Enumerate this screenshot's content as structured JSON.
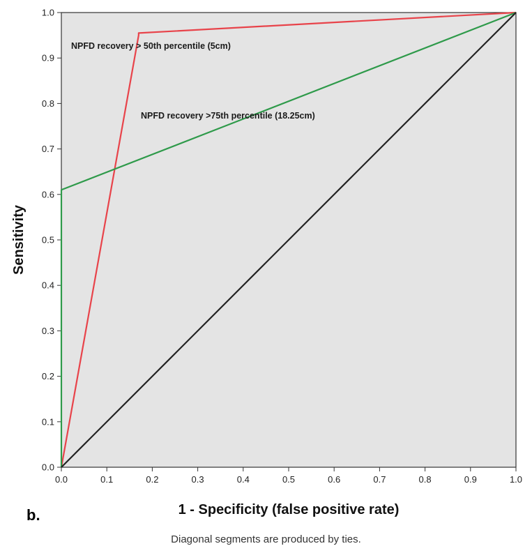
{
  "chart_data": {
    "type": "line",
    "xlabel": "1 - Specificity (false positive rate)",
    "ylabel": "Sensitivity",
    "xlim": [
      0.0,
      1.0
    ],
    "ylim": [
      0.0,
      1.0
    ],
    "x_ticks": [
      "0.0",
      "0.1",
      "0.2",
      "0.3",
      "0.4",
      "0.5",
      "0.6",
      "0.7",
      "0.8",
      "0.9",
      "1.0"
    ],
    "y_ticks": [
      "0.0",
      "0.1",
      "0.2",
      "0.3",
      "0.4",
      "0.5",
      "0.6",
      "0.7",
      "0.8",
      "0.9",
      "1.0"
    ],
    "grid": false,
    "background_color": "#e4e4e4",
    "series": [
      {
        "name": "NPFD recovery > 50th percentile (5cm)",
        "color": "#e8434a",
        "x": [
          0.0,
          0.17,
          0.17,
          1.0
        ],
        "y": [
          0.0,
          0.95,
          0.955,
          1.0
        ]
      },
      {
        "name": "NPFD recovery >75th percentile (18.25cm)",
        "color": "#2e9a4a",
        "x": [
          0.0,
          0.0,
          1.0
        ],
        "y": [
          0.0,
          0.61,
          1.0
        ]
      },
      {
        "color": "#222222",
        "x": [
          0.0,
          1.0
        ],
        "y": [
          0.0,
          1.0
        ]
      }
    ]
  },
  "panel_label": "b.",
  "footnote": "Diagonal segments are produced by ties."
}
